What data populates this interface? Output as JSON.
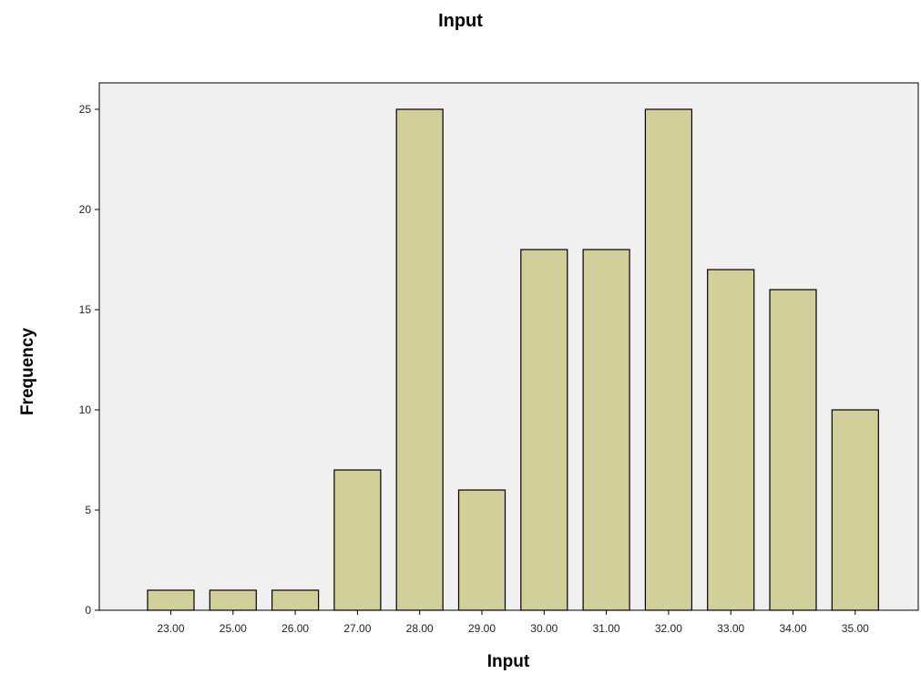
{
  "chart_data": {
    "type": "bar",
    "title": "Input",
    "xlabel": "Input",
    "ylabel": "Frequency",
    "categories": [
      "23.00",
      "25.00",
      "26.00",
      "27.00",
      "28.00",
      "29.00",
      "30.00",
      "31.00",
      "32.00",
      "33.00",
      "34.00",
      "35.00"
    ],
    "values": [
      1,
      1,
      1,
      7,
      25,
      6,
      18,
      18,
      25,
      17,
      16,
      10
    ],
    "ylim": [
      0,
      26
    ],
    "yticks": [
      0,
      5,
      10,
      15,
      20,
      25
    ],
    "grid": false,
    "colors": {
      "bar_fill": "#d3cf9a",
      "bar_stroke": "#000000",
      "plot_background": "#f0f0f0"
    }
  }
}
